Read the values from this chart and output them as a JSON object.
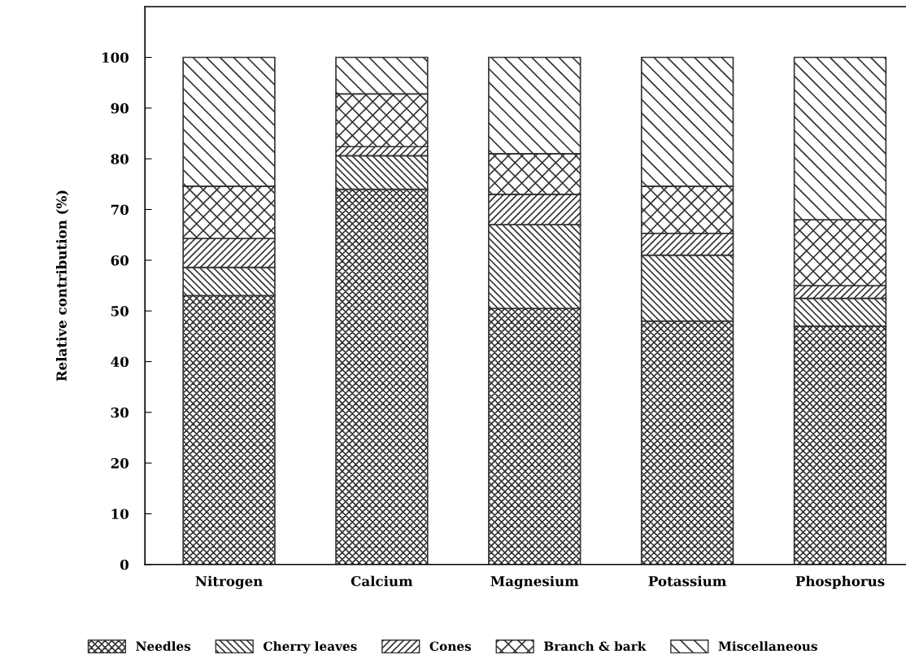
{
  "chart_data": {
    "type": "bar",
    "stacked": true,
    "ylabel": "Relative contribution (%)",
    "categories": [
      "Nitrogen",
      "Calcium",
      "Magnesium",
      "Potassium",
      "Phosphorus"
    ],
    "series": [
      {
        "name": "Needles",
        "color": "#333333",
        "values": [
          53,
          74,
          50.5,
          48,
          47
        ]
      },
      {
        "name": "Cherry leaves",
        "color": "#333333",
        "values": [
          5.6,
          6.6,
          16.5,
          13,
          5.5
        ]
      },
      {
        "name": "Cones",
        "color": "#333333",
        "values": [
          5.7,
          1.8,
          6,
          4.3,
          2.5
        ]
      },
      {
        "name": "Branch & bark",
        "color": "#333333",
        "values": [
          10.3,
          10.4,
          8,
          9.3,
          13
        ]
      },
      {
        "name": "Miscellaneous",
        "color": "#333333",
        "values": [
          25.4,
          7.2,
          19,
          25.4,
          32
        ]
      }
    ],
    "ylim": [
      0,
      110
    ],
    "yticks": [
      0,
      10,
      20,
      30,
      40,
      50,
      60,
      70,
      80,
      90,
      100
    ],
    "grid": false,
    "legend": "bottom"
  }
}
